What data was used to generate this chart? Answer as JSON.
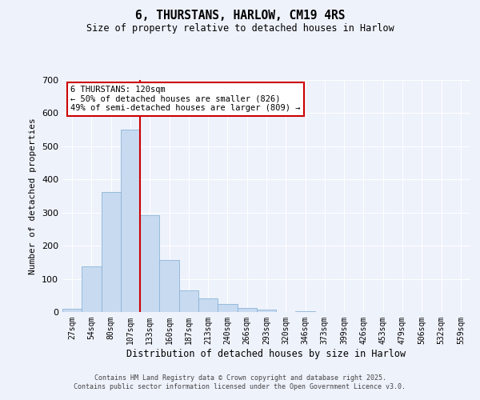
{
  "title": "6, THURSTANS, HARLOW, CM19 4RS",
  "subtitle": "Size of property relative to detached houses in Harlow",
  "xlabel": "Distribution of detached houses by size in Harlow",
  "ylabel": "Number of detached properties",
  "categories": [
    "27sqm",
    "54sqm",
    "80sqm",
    "107sqm",
    "133sqm",
    "160sqm",
    "187sqm",
    "213sqm",
    "240sqm",
    "266sqm",
    "293sqm",
    "320sqm",
    "346sqm",
    "373sqm",
    "399sqm",
    "426sqm",
    "453sqm",
    "479sqm",
    "506sqm",
    "532sqm",
    "559sqm"
  ],
  "values": [
    10,
    138,
    363,
    550,
    292,
    158,
    65,
    40,
    23,
    13,
    8,
    0,
    2,
    0,
    0,
    0,
    0,
    0,
    0,
    0,
    0
  ],
  "bar_color": "#c8daf0",
  "bar_edge_color": "#8ab4d8",
  "bar_edge_width": 0.6,
  "vline_color": "#cc0000",
  "vline_x_index": 3,
  "annotation_title": "6 THURSTANS: 120sqm",
  "annotation_line1": "← 50% of detached houses are smaller (826)",
  "annotation_line2": "49% of semi-detached houses are larger (809) →",
  "annotation_box_color": "#ffffff",
  "annotation_box_edge": "#cc0000",
  "ylim": [
    0,
    700
  ],
  "yticks": [
    0,
    100,
    200,
    300,
    400,
    500,
    600,
    700
  ],
  "bg_color": "#eef2fb",
  "grid_color": "#ffffff",
  "footer1": "Contains HM Land Registry data © Crown copyright and database right 2025.",
  "footer2": "Contains public sector information licensed under the Open Government Licence v3.0."
}
